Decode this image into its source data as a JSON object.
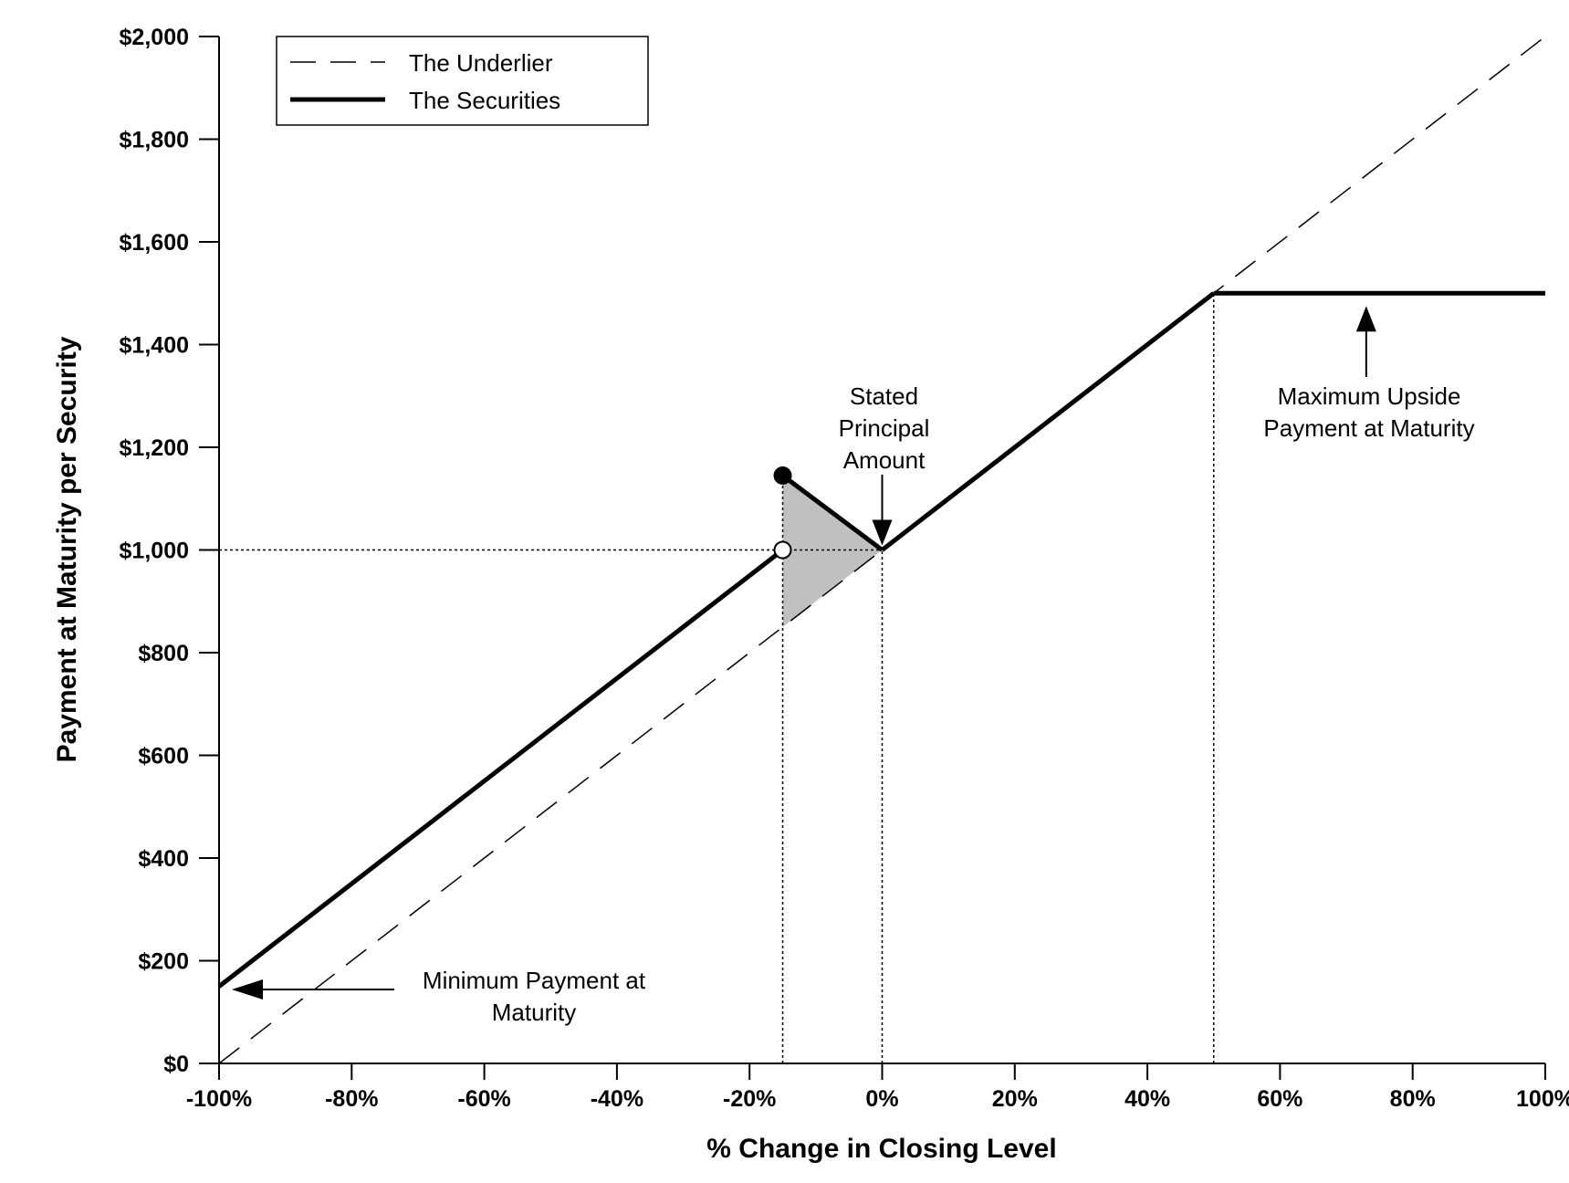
{
  "chart_data": {
    "type": "line",
    "xlabel": "% Change in Closing Level",
    "ylabel": "Payment at Maturity per Security",
    "xlim": [
      -100,
      100
    ],
    "ylim": [
      0,
      2000
    ],
    "x_ticks": [
      -100,
      -80,
      -60,
      -40,
      -20,
      0,
      20,
      40,
      60,
      80,
      100
    ],
    "x_tick_labels": [
      "-100%",
      "-80%",
      "-60%",
      "-40%",
      "-20%",
      "0%",
      "20%",
      "40%",
      "60%",
      "80%",
      "100%"
    ],
    "y_ticks": [
      0,
      200,
      400,
      600,
      800,
      1000,
      1200,
      1400,
      1600,
      1800,
      2000
    ],
    "y_tick_labels": [
      "$0",
      "$200",
      "$400",
      "$600",
      "$800",
      "$1,000",
      "$1,200",
      "$1,400",
      "$1,600",
      "$1,800",
      "$2,000"
    ],
    "grid": false,
    "legend": {
      "position": "top-left",
      "entries": [
        {
          "name": "The Underlier",
          "style": "dashed"
        },
        {
          "name": "The Securities",
          "style": "solid-thick"
        }
      ]
    },
    "series": [
      {
        "name": "The Underlier",
        "style": "dashed",
        "x": [
          -100,
          100
        ],
        "y": [
          0,
          2000
        ]
      },
      {
        "name": "The Securities",
        "style": "solid-thick",
        "segments": [
          {
            "x": [
              -100,
              -15
            ],
            "y": [
              150,
              1000
            ]
          },
          {
            "x": [
              -15,
              0
            ],
            "y": [
              1145,
              1000
            ]
          },
          {
            "x": [
              0,
              50
            ],
            "y": [
              1000,
              1500
            ]
          },
          {
            "x": [
              50,
              100
            ],
            "y": [
              1500,
              1500
            ]
          }
        ]
      }
    ],
    "markers": [
      {
        "x": -15,
        "y": 1145,
        "fill": "filled"
      },
      {
        "x": -15,
        "y": 1000,
        "fill": "open"
      }
    ],
    "shaded_region": {
      "points": [
        [
          -15,
          1145
        ],
        [
          0,
          1000
        ],
        [
          -15,
          850
        ]
      ],
      "color": "#c0c0c0"
    },
    "reference_lines": [
      {
        "type": "horizontal",
        "y": 1000,
        "x_from": -100,
        "x_to": 0,
        "style": "dotted"
      },
      {
        "type": "vertical",
        "x": -15,
        "y_from": 0,
        "y_to": 1145,
        "style": "dotted"
      },
      {
        "type": "vertical",
        "x": 0,
        "y_from": 0,
        "y_to": 1000,
        "style": "dotted"
      },
      {
        "type": "vertical",
        "x": 50,
        "y_from": 0,
        "y_to": 1500,
        "style": "dotted"
      }
    ],
    "annotations": [
      {
        "id": "stated-principal",
        "lines": [
          "Stated",
          "Principal",
          "Amount"
        ],
        "arrow_to": [
          0,
          1000
        ]
      },
      {
        "id": "max-upside",
        "lines": [
          "Maximum Upside",
          "Payment at Maturity"
        ],
        "arrow_to": [
          73,
          1500
        ]
      },
      {
        "id": "min-payment",
        "lines": [
          "Minimum Payment at",
          "Maturity"
        ],
        "arrow_to": [
          -100,
          150
        ]
      }
    ]
  }
}
